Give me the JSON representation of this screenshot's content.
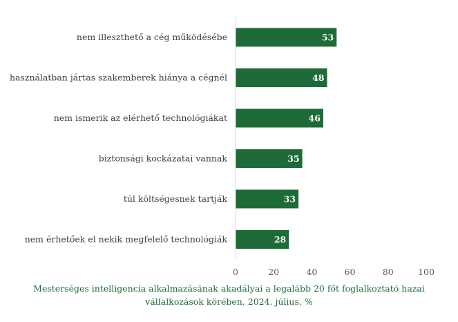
{
  "chart_data": {
    "type": "bar",
    "orientation": "horizontal",
    "categories": [
      "nem illeszthető a cég működésébe",
      "használatban jártas szakemberek hiánya a cégnél",
      "nem ismerik az elérhető technológiákat",
      "biztonsági kockázatai vannak",
      "túl költségesnek tartják",
      "nem érhetőek el nekik megfelelő technológiák"
    ],
    "values": [
      53,
      48,
      46,
      35,
      33,
      28
    ],
    "xlim": [
      0,
      100
    ],
    "xticks": [
      0,
      20,
      40,
      60,
      80,
      100
    ],
    "bar_color": "#1e6b37",
    "grid": false,
    "data_labels": true,
    "caption_lines": [
      "Mesterséges intelligencia alkalmazásának akadályai a legalább 20 főt foglalkoztató hazai",
      "vállalkozások körében, 2024. július, %"
    ]
  }
}
